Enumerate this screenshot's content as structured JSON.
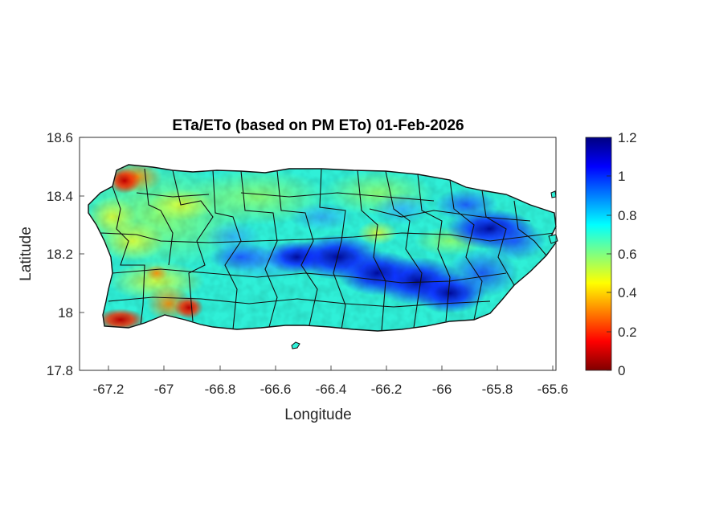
{
  "chart_data": {
    "type": "heatmap",
    "title": "ETa/ETo (based on PM ETo) 01-Feb-2026",
    "xlabel": "Longitude",
    "ylabel": "Latitude",
    "xlim": [
      -67.3,
      -65.59
    ],
    "ylim": [
      17.8,
      18.6
    ],
    "xticks": [
      "-67.2",
      "-67",
      "-66.8",
      "-66.6",
      "-66.4",
      "-66.2",
      "-66",
      "-65.8",
      "-65.6"
    ],
    "yticks": [
      "18.6",
      "18.4",
      "18.2",
      "18",
      "17.8"
    ],
    "colorbar": {
      "colormap": "jet",
      "range": [
        0,
        1.2
      ],
      "ticks": [
        "1.2",
        "1",
        "0.8",
        "0.6",
        "0.4",
        "0.2",
        "0"
      ]
    }
  },
  "colors": {
    "dark_red": "#800000",
    "red": "#ff0000",
    "yellow": "#ffff00",
    "green": "#80ff80",
    "cyan": "#00ffff",
    "blue": "#0000ff",
    "dark_blue": "#000080"
  }
}
